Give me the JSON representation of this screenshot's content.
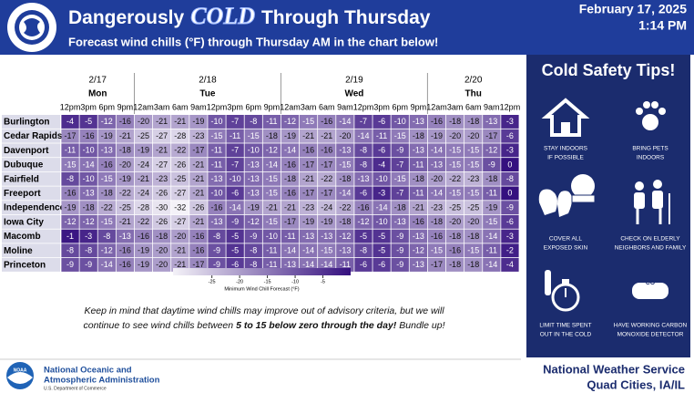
{
  "header": {
    "title_parts": [
      "Dangerously",
      "COLD",
      "Through Thursday"
    ],
    "date": "February 17, 2025",
    "time": "1:14 PM",
    "subtitle": "Forecast wind chills (°F) through Thursday AM in the chart below!"
  },
  "table": {
    "days": [
      {
        "date": "2/17",
        "day": "Mon",
        "times": [
          "12pm",
          "3pm",
          "6pm",
          "9pm"
        ]
      },
      {
        "date": "2/18",
        "day": "Tue",
        "times": [
          "12am",
          "3am",
          "6am",
          "9am",
          "12pm",
          "3pm",
          "6pm",
          "9pm"
        ]
      },
      {
        "date": "2/19",
        "day": "Wed",
        "times": [
          "12am",
          "3am",
          "6am",
          "9am",
          "12pm",
          "3pm",
          "6pm",
          "9pm"
        ]
      },
      {
        "date": "2/20",
        "day": "Thu",
        "times": [
          "12am",
          "3am",
          "6am",
          "9am",
          "12pm"
        ]
      }
    ],
    "rows": [
      {
        "location": "Burlington",
        "values": [
          -4,
          -5,
          -12,
          -16,
          -20,
          -21,
          -21,
          -19,
          -10,
          -7,
          -8,
          -11,
          -12,
          -15,
          -16,
          -14,
          -7,
          -6,
          -10,
          -13,
          -16,
          -18,
          -18,
          -13,
          -3
        ]
      },
      {
        "location": "Cedar Rapids",
        "values": [
          -17,
          -16,
          -19,
          -21,
          -25,
          -27,
          -28,
          -23,
          -15,
          -11,
          -15,
          -18,
          -19,
          -21,
          -21,
          -20,
          -14,
          -11,
          -15,
          -18,
          -19,
          -20,
          -20,
          -17,
          -6
        ]
      },
      {
        "location": "Davenport",
        "values": [
          -11,
          -10,
          -13,
          -18,
          -19,
          -21,
          -22,
          -17,
          -11,
          -7,
          -10,
          -12,
          -14,
          -16,
          -16,
          -13,
          -8,
          -6,
          -9,
          -13,
          -14,
          -15,
          -15,
          -12,
          -3
        ]
      },
      {
        "location": "Dubuque",
        "values": [
          -15,
          -14,
          -16,
          -20,
          -24,
          -27,
          -26,
          -21,
          -11,
          -7,
          -13,
          -14,
          -16,
          -17,
          -17,
          -15,
          -8,
          -4,
          -7,
          -11,
          -13,
          -15,
          -15,
          -9,
          0
        ]
      },
      {
        "location": "Fairfield",
        "values": [
          -8,
          -10,
          -15,
          -19,
          -21,
          -23,
          -25,
          -21,
          -13,
          -10,
          -13,
          -15,
          -18,
          -21,
          -22,
          -18,
          -13,
          -10,
          -15,
          -18,
          -20,
          -22,
          -23,
          -18,
          -8
        ]
      },
      {
        "location": "Freeport",
        "values": [
          -16,
          -13,
          -18,
          -22,
          -24,
          -26,
          -27,
          -21,
          -10,
          -6,
          -13,
          -15,
          -16,
          -17,
          -17,
          -14,
          -6,
          -3,
          -7,
          -11,
          -14,
          -15,
          -15,
          -11,
          0
        ]
      },
      {
        "location": "Independence",
        "values": [
          -19,
          -18,
          -22,
          -25,
          -28,
          -30,
          -32,
          -26,
          -16,
          -14,
          -19,
          -21,
          -21,
          -23,
          -24,
          -22,
          -16,
          -14,
          -18,
          -21,
          -23,
          -25,
          -25,
          -19,
          -9
        ]
      },
      {
        "location": "Iowa City",
        "values": [
          -12,
          -12,
          -15,
          -21,
          -22,
          -26,
          -27,
          -21,
          -13,
          -9,
          -12,
          -15,
          -17,
          -19,
          -19,
          -18,
          -12,
          -10,
          -13,
          -16,
          -18,
          -20,
          -20,
          -15,
          -6
        ]
      },
      {
        "location": "Macomb",
        "values": [
          -1,
          -3,
          -8,
          -13,
          -16,
          -18,
          -20,
          -16,
          -8,
          -5,
          -9,
          -10,
          -11,
          -13,
          -13,
          -12,
          -5,
          -5,
          -9,
          -13,
          -16,
          -18,
          -18,
          -14,
          -3
        ]
      },
      {
        "location": "Moline",
        "values": [
          -8,
          -8,
          -12,
          -16,
          -19,
          -20,
          -21,
          -16,
          -9,
          -5,
          -8,
          -11,
          -14,
          -14,
          -15,
          -13,
          -8,
          -5,
          -9,
          -12,
          -15,
          -16,
          -15,
          -11,
          -2
        ]
      },
      {
        "location": "Princeton",
        "values": [
          -9,
          -9,
          -14,
          -16,
          -19,
          -20,
          -21,
          -17,
          -9,
          -6,
          -8,
          -11,
          -13,
          -14,
          -14,
          -11,
          -6,
          -6,
          -9,
          -13,
          -17,
          -18,
          -18,
          -14,
          -4
        ]
      }
    ]
  },
  "colorbar": {
    "label": "Minimum Wind Chill Forecast (°F)",
    "lim": [
      -32,
      0
    ],
    "ticks": [
      -25,
      -20,
      -15,
      -10,
      -5
    ],
    "colors": [
      "#f4f2f8",
      "#35107f"
    ]
  },
  "note": {
    "line1": "Keep in mind that daytime wind chills may improve out of advisory criteria, but we will",
    "line2_start": "continue to see wind chills between",
    "emphasis": "5 to 15 below zero through the day!",
    "line2_end": "Bundle up!"
  },
  "tips": {
    "title": "Cold Safety Tips!",
    "detector_text": "CO",
    "items": [
      [
        "STAY INDOORS",
        "IF POSSIBLE"
      ],
      [
        "BRING PETS",
        "INDOORS"
      ],
      [
        "COVER ALL",
        "EXPOSED SKIN"
      ],
      [
        "CHECK ON ELDERLY",
        "NEIGHBORS AND FAMILY"
      ],
      [
        "LIMIT TIME SPENT",
        "OUT IN THE COLD"
      ],
      [
        "HAVE WORKING CARBON",
        "MONOXIDE DETECTOR"
      ]
    ]
  },
  "footer": {
    "noaa_logo": "NOAA",
    "agency_line1": "National Oceanic and",
    "agency_line2": "Atmospheric Administration",
    "department": "U.S. Department of Commerce",
    "office_line1": "National Weather Service",
    "office_line2": "Quad Cities, IA/IL"
  }
}
